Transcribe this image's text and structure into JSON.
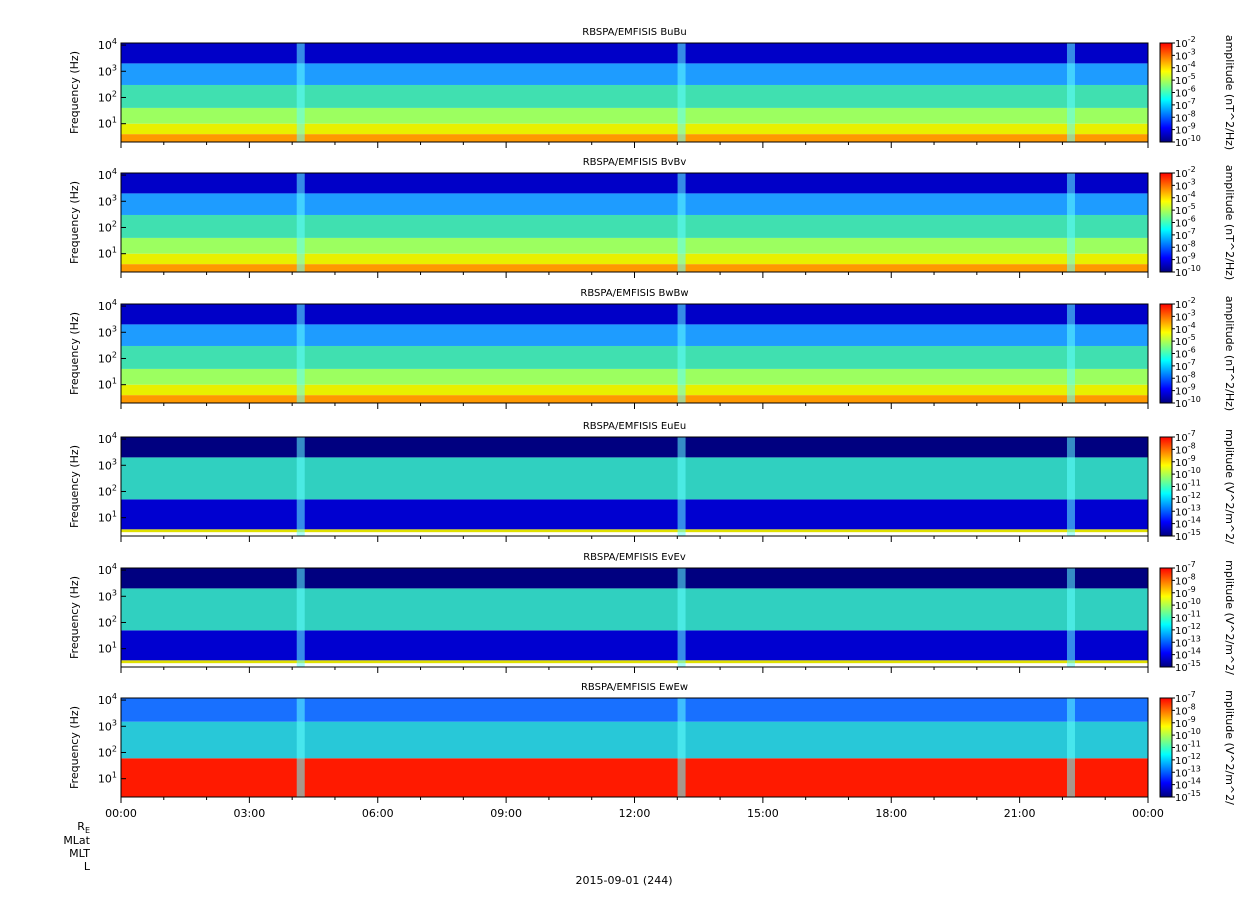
{
  "chart_data": [
    {
      "type": "heatmap",
      "title": "RBSPA/EMFISIS  BuBu",
      "ylabel": "Frequency (Hz)",
      "yscale": "log",
      "ylim": [
        2,
        12000
      ],
      "yticks": [
        "10^1",
        "10^2",
        "10^3",
        "10^4"
      ],
      "xlim": [
        "00:00",
        "24:00"
      ],
      "colorbar_label": "amplitude (nT^2/Hz)",
      "colorbar_scale": "log",
      "colorbar_range": [
        1e-10,
        0.01
      ],
      "colorbar_ticks": [
        "10^-2",
        "10^-3",
        "10^-4",
        "10^-5",
        "10^-6",
        "10^-7",
        "10^-8",
        "10^-9",
        "10^-10"
      ],
      "colormap": [
        "#00007f",
        "#0000ff",
        "#007fff",
        "#00ffff",
        "#7fff7f",
        "#ffff00",
        "#ff7f00",
        "#ff0000"
      ],
      "kind": "mag"
    },
    {
      "type": "heatmap",
      "title": "RBSPA/EMFISIS  BvBv",
      "ylabel": "Frequency (Hz)",
      "yscale": "log",
      "ylim": [
        2,
        12000
      ],
      "yticks": [
        "10^1",
        "10^2",
        "10^3",
        "10^4"
      ],
      "xlim": [
        "00:00",
        "24:00"
      ],
      "colorbar_label": "amplitude (nT^2/Hz)",
      "colorbar_scale": "log",
      "colorbar_range": [
        1e-10,
        0.01
      ],
      "colorbar_ticks": [
        "10^-2",
        "10^-3",
        "10^-4",
        "10^-5",
        "10^-6",
        "10^-7",
        "10^-8",
        "10^-9",
        "10^-10"
      ],
      "colormap": [
        "#00007f",
        "#0000ff",
        "#007fff",
        "#00ffff",
        "#7fff7f",
        "#ffff00",
        "#ff7f00",
        "#ff0000"
      ],
      "kind": "mag"
    },
    {
      "type": "heatmap",
      "title": "RBSPA/EMFISIS  BwBw",
      "ylabel": "Frequency (Hz)",
      "yscale": "log",
      "ylim": [
        2,
        12000
      ],
      "yticks": [
        "10^1",
        "10^2",
        "10^3",
        "10^4"
      ],
      "xlim": [
        "00:00",
        "24:00"
      ],
      "colorbar_label": "amplitude (nT^2/Hz)",
      "colorbar_scale": "log",
      "colorbar_range": [
        1e-10,
        0.01
      ],
      "colorbar_ticks": [
        "10^-2",
        "10^-3",
        "10^-4",
        "10^-5",
        "10^-6",
        "10^-7",
        "10^-8",
        "10^-9",
        "10^-10"
      ],
      "colormap": [
        "#00007f",
        "#0000ff",
        "#007fff",
        "#00ffff",
        "#7fff7f",
        "#ffff00",
        "#ff7f00",
        "#ff0000"
      ],
      "kind": "mag"
    },
    {
      "type": "heatmap",
      "title": "RBSPA/EMFISIS  EuEu",
      "ylabel": "Frequency (Hz)",
      "yscale": "log",
      "ylim": [
        2,
        12000
      ],
      "yticks": [
        "10^1",
        "10^2",
        "10^3",
        "10^4"
      ],
      "xlim": [
        "00:00",
        "24:00"
      ],
      "colorbar_label": "mplitude (V^2/m^2/",
      "colorbar_scale": "log",
      "colorbar_range": [
        1e-15,
        1e-07
      ],
      "colorbar_ticks": [
        "10^-7",
        "10^-8",
        "10^-9",
        "10^-10",
        "10^-11",
        "10^-12",
        "10^-13",
        "10^-14",
        "10^-15"
      ],
      "colormap": [
        "#00007f",
        "#0000ff",
        "#007fff",
        "#00ffff",
        "#7fff7f",
        "#ffff00",
        "#ff7f00",
        "#ff0000"
      ],
      "kind": "elec"
    },
    {
      "type": "heatmap",
      "title": "RBSPA/EMFISIS  EvEv",
      "ylabel": "Frequency (Hz)",
      "yscale": "log",
      "ylim": [
        2,
        12000
      ],
      "yticks": [
        "10^1",
        "10^2",
        "10^3",
        "10^4"
      ],
      "xlim": [
        "00:00",
        "24:00"
      ],
      "colorbar_label": "mplitude (V^2/m^2/",
      "colorbar_scale": "log",
      "colorbar_range": [
        1e-15,
        1e-07
      ],
      "colorbar_ticks": [
        "10^-7",
        "10^-8",
        "10^-9",
        "10^-10",
        "10^-11",
        "10^-12",
        "10^-13",
        "10^-14",
        "10^-15"
      ],
      "colormap": [
        "#00007f",
        "#0000ff",
        "#007fff",
        "#00ffff",
        "#7fff7f",
        "#ffff00",
        "#ff7f00",
        "#ff0000"
      ],
      "kind": "elec"
    },
    {
      "type": "heatmap",
      "title": "RBSPA/EMFISIS  EwEw",
      "ylabel": "Frequency (Hz)",
      "yscale": "log",
      "ylim": [
        2,
        12000
      ],
      "yticks": [
        "10^1",
        "10^2",
        "10^3",
        "10^4"
      ],
      "xlim": [
        "00:00",
        "24:00"
      ],
      "xticks": [
        "00:00",
        "03:00",
        "06:00",
        "09:00",
        "12:00",
        "15:00",
        "18:00",
        "21:00",
        "00:00"
      ],
      "colorbar_label": "mplitude (V^2/m^2/",
      "colorbar_scale": "log",
      "colorbar_range": [
        1e-15,
        1e-07
      ],
      "colorbar_ticks": [
        "10^-7",
        "10^-8",
        "10^-9",
        "10^-10",
        "10^-11",
        "10^-12",
        "10^-13",
        "10^-14",
        "10^-15"
      ],
      "colormap": [
        "#00007f",
        "#0000ff",
        "#007fff",
        "#00ffff",
        "#7fff7f",
        "#ffff00",
        "#ff7f00",
        "#ff0000"
      ],
      "kind": "ew"
    }
  ],
  "ephemeris_labels": [
    "R",
    "MLat",
    "MLT",
    "L"
  ],
  "ephemeris_subscript": "E",
  "date_label": "2015-09-01 (244)"
}
